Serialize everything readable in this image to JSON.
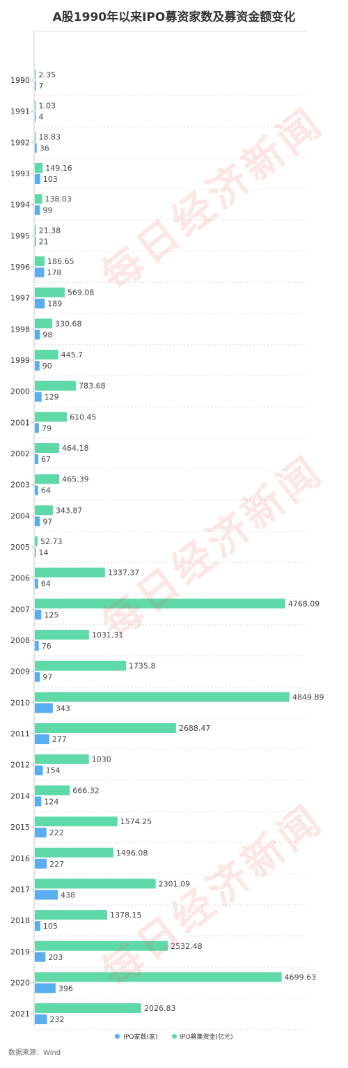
{
  "title": "A股1990年以来IPO募资家数及募资金额变化",
  "chart_data": {
    "type": "bar",
    "orientation": "horizontal",
    "title": "A股1990年以来IPO募资家数及募资金额变化",
    "categories": [
      "1990",
      "1991",
      "1992",
      "1993",
      "1994",
      "1995",
      "1996",
      "1997",
      "1998",
      "1999",
      "2000",
      "2001",
      "2002",
      "2003",
      "2004",
      "2005",
      "2006",
      "2007",
      "2008",
      "2009",
      "2010",
      "2011",
      "2012",
      "2014",
      "2015",
      "2016",
      "2017",
      "2018",
      "2019",
      "2020",
      "2021"
    ],
    "series": [
      {
        "name": "IPO募集资金(亿元)",
        "color": "#5fd9a8",
        "values": [
          2.35,
          1.03,
          18.83,
          149.16,
          138.03,
          21.38,
          186.65,
          569.08,
          330.68,
          445.7,
          783.68,
          610.45,
          464.18,
          465.39,
          343.87,
          52.73,
          1337.37,
          4768.09,
          1031.31,
          1735.8,
          4849.89,
          2688.47,
          1030,
          666.32,
          1574.25,
          1496.08,
          2301.09,
          1378.15,
          2532.48,
          4699.63,
          2026.83
        ]
      },
      {
        "name": "IPO家数(家)",
        "color": "#5aaef0",
        "values": [
          7,
          4,
          36,
          103,
          99,
          21,
          178,
          189,
          98,
          90,
          129,
          79,
          67,
          64,
          97,
          14,
          64,
          125,
          76,
          97,
          343,
          277,
          154,
          124,
          222,
          227,
          438,
          105,
          203,
          396,
          232
        ]
      }
    ],
    "grid": true,
    "legend_position": "bottom"
  },
  "legend": [
    {
      "label": "IPO家数(家)",
      "color": "#5aaef0"
    },
    {
      "label": "IPO募集资金(亿元)",
      "color": "#5fd9a8"
    }
  ],
  "source": "数据来源：Wind",
  "watermark": "每日经济新闻"
}
